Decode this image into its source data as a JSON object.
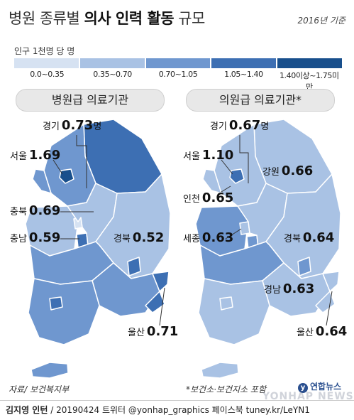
{
  "header": {
    "title_normal": "병원 종류별",
    "title_bold": "의사 인력 활동",
    "title_tail": "규모",
    "note": "2016년 기준"
  },
  "legend": {
    "unit": "인구 1천명 당 명",
    "items": [
      {
        "label": "0.0~0.35",
        "color": "#d6e2f2"
      },
      {
        "label": "0.35~0.70",
        "color": "#a9c2e4"
      },
      {
        "label": "0.70~1.05",
        "color": "#6f97cf"
      },
      {
        "label": "1.05~1.40",
        "color": "#3d6fb3"
      },
      {
        "label": "1.40이상~1.75미만",
        "color": "#184f8c"
      }
    ]
  },
  "maps": [
    {
      "title": "병원급 의료기관",
      "labels": [
        {
          "region": "경기",
          "value": "0.73",
          "unit": "명"
        },
        {
          "region": "서울",
          "value": "1.69",
          "unit": ""
        },
        {
          "region": "충북",
          "value": "0.69",
          "unit": ""
        },
        {
          "region": "충남",
          "value": "0.59",
          "unit": ""
        },
        {
          "region": "경북",
          "value": "0.52",
          "unit": ""
        },
        {
          "region": "울산",
          "value": "0.71",
          "unit": ""
        }
      ]
    },
    {
      "title": "의원급 의료기관*",
      "labels": [
        {
          "region": "경기",
          "value": "0.67",
          "unit": "명"
        },
        {
          "region": "서울",
          "value": "1.10",
          "unit": ""
        },
        {
          "region": "강원",
          "value": "0.66",
          "unit": ""
        },
        {
          "region": "인천",
          "value": "0.65",
          "unit": ""
        },
        {
          "region": "세종",
          "value": "0.63",
          "unit": ""
        },
        {
          "region": "경북",
          "value": "0.64",
          "unit": ""
        },
        {
          "region": "경남",
          "value": "0.63",
          "unit": ""
        },
        {
          "region": "울산",
          "value": "0.64",
          "unit": ""
        }
      ]
    }
  ],
  "source": "자료/ 보건복지부",
  "footnote": "*보건소·보건지소 포함",
  "logo": "연합뉴스",
  "watermark": "YONHAP NEWS",
  "footer": {
    "author": "김지영 인턴",
    "info": " / 20190424 트위터 @yonhap_graphics  페이스북 tuney.kr/LeYN1"
  }
}
